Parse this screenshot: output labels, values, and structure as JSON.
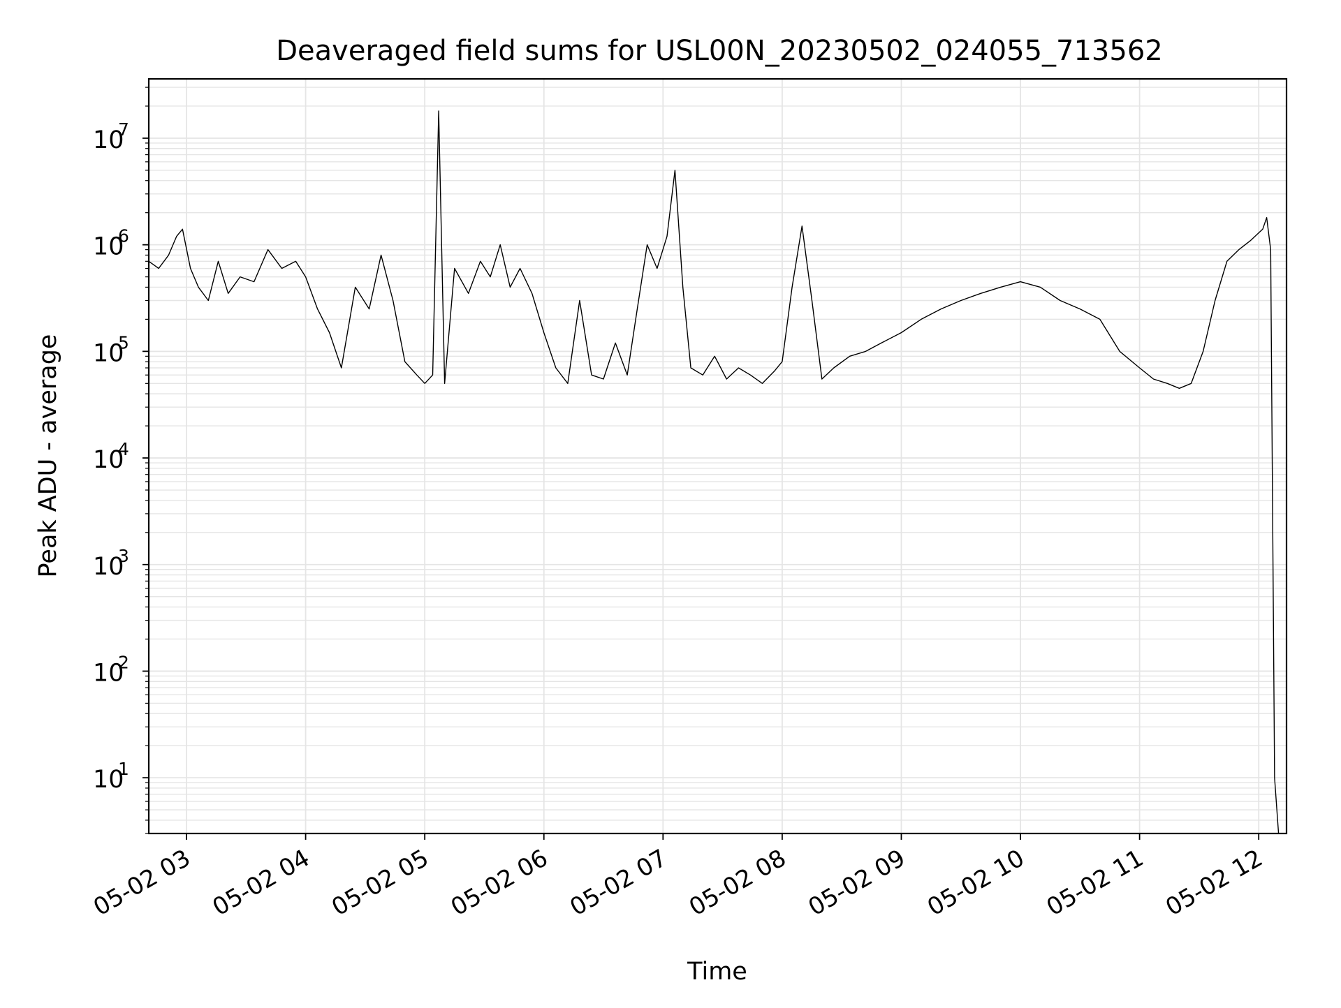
{
  "chart_data": {
    "type": "line",
    "title": "Deaveraged field sums for USL00N_20230502_024055_713562",
    "xlabel": "Time",
    "ylabel": "Peak ADU - average",
    "yscale": "log",
    "ylim": [
      3,
      36000000
    ],
    "xlim": [
      "2023-05-02 02:41:00",
      "2023-05-02 12:14:00"
    ],
    "grid": true,
    "grid_color": "#e5e5e5",
    "line_color": "#000000",
    "x_ticks": [
      {
        "value": "2023-05-02 03:00",
        "label": "05-02 03"
      },
      {
        "value": "2023-05-02 04:00",
        "label": "05-02 04"
      },
      {
        "value": "2023-05-02 05:00",
        "label": "05-02 05"
      },
      {
        "value": "2023-05-02 06:00",
        "label": "05-02 06"
      },
      {
        "value": "2023-05-02 07:00",
        "label": "05-02 07"
      },
      {
        "value": "2023-05-02 08:00",
        "label": "05-02 08"
      },
      {
        "value": "2023-05-02 09:00",
        "label": "05-02 09"
      },
      {
        "value": "2023-05-02 10:00",
        "label": "05-02 10"
      },
      {
        "value": "2023-05-02 11:00",
        "label": "05-02 11"
      },
      {
        "value": "2023-05-02 12:00",
        "label": "05-02 12"
      }
    ],
    "y_ticks": [
      {
        "value": 10,
        "base": "10",
        "exp": "1"
      },
      {
        "value": 100,
        "base": "10",
        "exp": "2"
      },
      {
        "value": 1000,
        "base": "10",
        "exp": "3"
      },
      {
        "value": 10000,
        "base": "10",
        "exp": "4"
      },
      {
        "value": 100000,
        "base": "10",
        "exp": "5"
      },
      {
        "value": 1000000,
        "base": "10",
        "exp": "6"
      },
      {
        "value": 10000000,
        "base": "10",
        "exp": "7"
      }
    ],
    "series": [
      {
        "x": [
          "2023-05-02 02:41",
          "2023-05-02 02:46",
          "2023-05-02 02:51",
          "2023-05-02 02:55",
          "2023-05-02 02:58",
          "2023-05-02 03:02",
          "2023-05-02 03:06",
          "2023-05-02 03:11",
          "2023-05-02 03:16",
          "2023-05-02 03:21",
          "2023-05-02 03:27",
          "2023-05-02 03:34",
          "2023-05-02 03:41",
          "2023-05-02 03:48",
          "2023-05-02 03:55",
          "2023-05-02 04:00",
          "2023-05-02 04:06",
          "2023-05-02 04:12",
          "2023-05-02 04:18",
          "2023-05-02 04:25",
          "2023-05-02 04:32",
          "2023-05-02 04:38",
          "2023-05-02 04:44",
          "2023-05-02 04:50",
          "2023-05-02 04:56",
          "2023-05-02 05:00",
          "2023-05-02 05:04",
          "2023-05-02 05:07",
          "2023-05-02 05:10",
          "2023-05-02 05:15",
          "2023-05-02 05:22",
          "2023-05-02 05:28",
          "2023-05-02 05:33",
          "2023-05-02 05:38",
          "2023-05-02 05:43",
          "2023-05-02 05:48",
          "2023-05-02 05:54",
          "2023-05-02 06:00",
          "2023-05-02 06:06",
          "2023-05-02 06:12",
          "2023-05-02 06:18",
          "2023-05-02 06:24",
          "2023-05-02 06:30",
          "2023-05-02 06:36",
          "2023-05-02 06:42",
          "2023-05-02 06:47",
          "2023-05-02 06:52",
          "2023-05-02 06:57",
          "2023-05-02 07:02",
          "2023-05-02 07:06",
          "2023-05-02 07:10",
          "2023-05-02 07:14",
          "2023-05-02 07:20",
          "2023-05-02 07:26",
          "2023-05-02 07:32",
          "2023-05-02 07:38",
          "2023-05-02 07:44",
          "2023-05-02 07:50",
          "2023-05-02 07:56",
          "2023-05-02 08:00",
          "2023-05-02 08:05",
          "2023-05-02 08:10",
          "2023-05-02 08:15",
          "2023-05-02 08:20",
          "2023-05-02 08:26",
          "2023-05-02 08:34",
          "2023-05-02 08:42",
          "2023-05-02 08:50",
          "2023-05-02 09:00",
          "2023-05-02 09:10",
          "2023-05-02 09:20",
          "2023-05-02 09:30",
          "2023-05-02 09:40",
          "2023-05-02 09:50",
          "2023-05-02 10:00",
          "2023-05-02 10:10",
          "2023-05-02 10:20",
          "2023-05-02 10:30",
          "2023-05-02 10:40",
          "2023-05-02 10:50",
          "2023-05-02 11:00",
          "2023-05-02 11:07",
          "2023-05-02 11:14",
          "2023-05-02 11:20",
          "2023-05-02 11:26",
          "2023-05-02 11:32",
          "2023-05-02 11:38",
          "2023-05-02 11:44",
          "2023-05-02 11:50",
          "2023-05-02 11:56",
          "2023-05-02 12:02",
          "2023-05-02 12:04",
          "2023-05-02 12:06",
          "2023-05-02 12:08",
          "2023-05-02 12:10"
        ],
        "y": [
          700000,
          600000,
          800000,
          1200000,
          1400000,
          600000,
          400000,
          300000,
          700000,
          350000,
          500000,
          450000,
          900000,
          600000,
          700000,
          500000,
          250000,
          150000,
          70000,
          400000,
          250000,
          800000,
          300000,
          80000,
          60000,
          50000,
          60000,
          18000000,
          50000,
          600000,
          350000,
          700000,
          500000,
          1000000,
          400000,
          600000,
          350000,
          150000,
          70000,
          50000,
          300000,
          60000,
          55000,
          120000,
          60000,
          250000,
          1000000,
          600000,
          1200000,
          5000000,
          400000,
          70000,
          60000,
          90000,
          55000,
          70000,
          60000,
          50000,
          65000,
          80000,
          400000,
          1500000,
          300000,
          55000,
          70000,
          90000,
          100000,
          120000,
          150000,
          200000,
          250000,
          300000,
          350000,
          400000,
          450000,
          400000,
          300000,
          250000,
          200000,
          100000,
          70000,
          55000,
          50000,
          45000,
          50000,
          100000,
          300000,
          700000,
          900000,
          1100000,
          1400000,
          1800000,
          900000,
          10,
          3
        ]
      }
    ]
  }
}
